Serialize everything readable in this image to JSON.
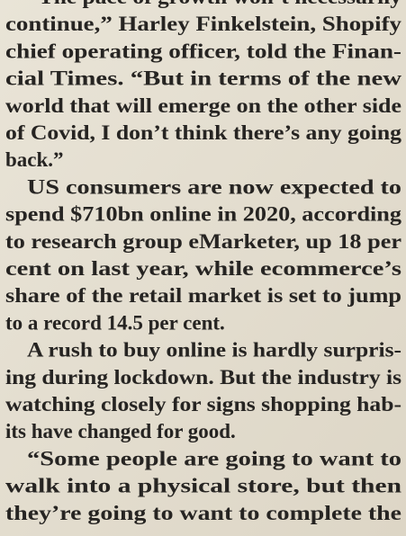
{
  "paragraphs": [
    {
      "lines": [
        "“The pace of growth won’t necessarily",
        "continue,” Harley Finkelstein, Shopify",
        "chief operating officer, told the Finan-",
        "cial Times. “But in terms of the new",
        "world that will emerge on the other side",
        "of Covid, I don’t think there’s any going",
        "back.”"
      ]
    },
    {
      "lines": [
        "US consumers are now expected to",
        "spend $710bn online in 2020, according",
        "to research group eMarketer, up 18 per",
        "cent on last year, while ecommerce’s",
        "share of the retail market is set to jump",
        "to a record 14.5 per cent."
      ]
    },
    {
      "lines": [
        "A rush to buy online is hardly surpris-",
        "ing during lockdown. But the industry is",
        "watching closely for signs shopping hab-",
        "its have changed for good."
      ]
    },
    {
      "lines": [
        "“Some people are going to want to",
        "walk into a physical store, but then",
        "they’re going to want to complete the"
      ]
    }
  ]
}
